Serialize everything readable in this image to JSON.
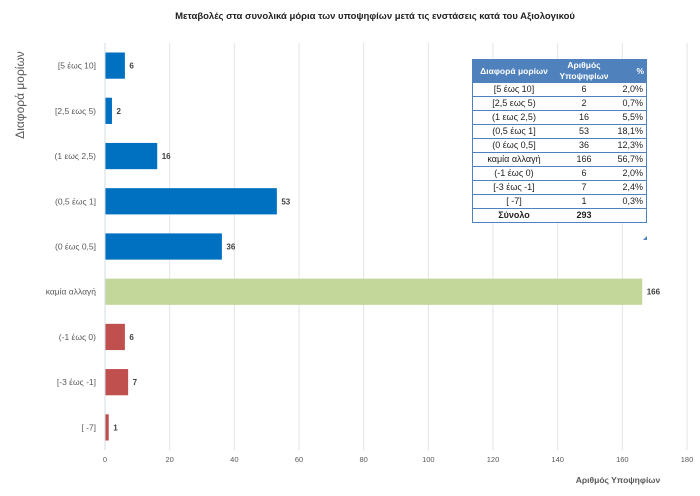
{
  "chart_data": {
    "type": "bar",
    "orientation": "horizontal",
    "title": "Μεταβολές στα συνολικά μόρια των υποψηφίων μετά τις ενστάσεις κατά του Αξιολογικού",
    "xlabel": "Αριθμός Υποψηφίων",
    "ylabel": "Διαφορά μορίων",
    "xlim": [
      0,
      180
    ],
    "xticks": [
      0,
      20,
      40,
      60,
      80,
      100,
      120,
      140,
      160,
      180
    ],
    "grid": true,
    "categories": [
      "[5 έως 10]",
      "[2,5 εως 5)",
      "(1 εως 2,5)",
      "(0,5 έως 1]",
      "(0 έως 0,5]",
      "καμία αλλαγή",
      "(-1 έως 0)",
      "[-3 έως -1]",
      "[ -7]"
    ],
    "values": [
      6,
      2,
      16,
      53,
      36,
      166,
      6,
      7,
      1
    ],
    "bar_colors": [
      "#0070c0",
      "#0070c0",
      "#0070c0",
      "#0070c0",
      "#0070c0",
      "#c4d79b",
      "#c0504d",
      "#c0504d",
      "#c0504d"
    ],
    "data_labels": [
      "6",
      "2",
      "16",
      "53",
      "36",
      "166",
      "6",
      "7",
      "1"
    ]
  },
  "table": {
    "headers": [
      "Διαφορά μορίων",
      "Αριθμός Υποψηφίων",
      "%"
    ],
    "rows": [
      [
        "[5 έως 10]",
        "6",
        "2,0%"
      ],
      [
        "[2,5 εως 5)",
        "2",
        "0,7%"
      ],
      [
        "(1 εως 2,5)",
        "16",
        "5,5%"
      ],
      [
        "(0,5 έως 1]",
        "53",
        "18,1%"
      ],
      [
        "(0 έως 0,5]",
        "36",
        "12,3%"
      ],
      [
        "καμία αλλαγή",
        "166",
        "56,7%"
      ],
      [
        "(-1 έως 0)",
        "6",
        "2,0%"
      ],
      [
        "[-3 έως -1]",
        "7",
        "2,4%"
      ],
      [
        "[ -7]",
        "1",
        "0,3%"
      ]
    ],
    "total": [
      "Σύνολο",
      "293",
      ""
    ]
  }
}
